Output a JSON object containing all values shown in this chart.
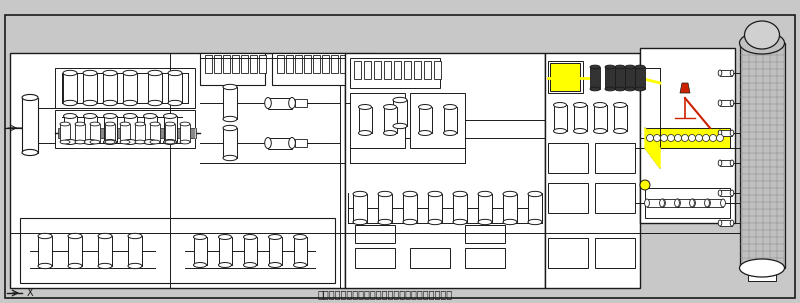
{
  "title": "溶剂法硫膏提纯及不溶性硫磺深加工工艺装置流程图",
  "bg_color": "#c8c8c8",
  "white": "#ffffff",
  "line_color": "#1a1a1a",
  "yellow": "#ffff00",
  "red": "#cc2200",
  "blue": "#0000aa",
  "dark": "#333333",
  "fig_width": 8.0,
  "fig_height": 3.03,
  "dpi": 100
}
